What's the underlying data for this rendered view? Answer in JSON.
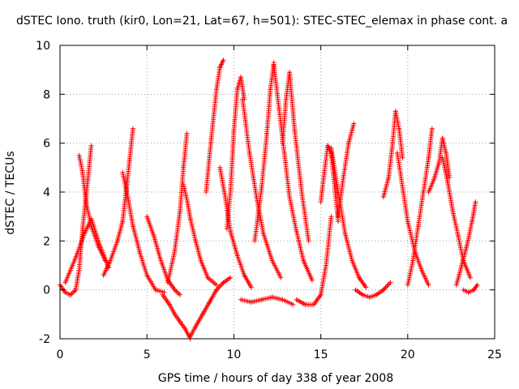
{
  "chart_data": {
    "type": "scatter",
    "title": "dSTEC Iono. truth (kir0, Lon=21, Lat=67, h=501): STEC-STEC_elemax in phase cont. a",
    "xlabel": "GPS time / hours of day 338 of year 2008",
    "ylabel": "dSTEC  / TECUs",
    "xlim": [
      0,
      25
    ],
    "ylim": [
      -2,
      10
    ],
    "xticks": [
      "0",
      "5",
      "10",
      "15",
      "20",
      "25"
    ],
    "yticks": [
      "-2",
      "0",
      "2",
      "4",
      "6",
      "8",
      "10"
    ],
    "grid": true,
    "marker": "+",
    "colors": {
      "series": "#ff0000",
      "grid": "#a0a0a0",
      "axes": "#000000"
    },
    "series": [
      {
        "x": [
          0.0,
          0.3,
          0.6,
          0.9,
          1.1,
          1.3,
          1.6,
          1.8
        ],
        "y": [
          0.2,
          -0.1,
          -0.2,
          0.0,
          0.8,
          2.5,
          4.5,
          5.9
        ]
      },
      {
        "x": [
          1.1,
          1.3,
          1.5,
          1.8,
          2.2,
          2.6
        ],
        "y": [
          5.5,
          4.8,
          3.6,
          2.6,
          1.8,
          1.2
        ]
      },
      {
        "x": [
          0.3,
          0.6,
          1.0,
          1.4,
          1.8,
          2.3,
          2.8
        ],
        "y": [
          0.3,
          0.8,
          1.5,
          2.3,
          2.9,
          1.8,
          0.9
        ]
      },
      {
        "x": [
          2.5,
          2.9,
          3.3,
          3.6,
          3.8,
          4.0,
          4.2
        ],
        "y": [
          0.6,
          1.2,
          2.0,
          2.8,
          4.0,
          5.3,
          6.6
        ]
      },
      {
        "x": [
          3.6,
          3.9,
          4.2,
          4.6,
          5.0,
          5.5,
          6.0
        ],
        "y": [
          4.8,
          3.8,
          2.6,
          1.5,
          0.6,
          0.0,
          -0.1
        ]
      },
      {
        "x": [
          5.0,
          5.4,
          5.8,
          6.2,
          6.6,
          6.9
        ],
        "y": [
          3.0,
          2.2,
          1.2,
          0.4,
          0.0,
          -0.2
        ]
      },
      {
        "x": [
          5.9,
          6.3,
          6.6,
          6.9,
          7.2,
          7.5
        ],
        "y": [
          -0.2,
          -0.6,
          -1.0,
          -1.3,
          -1.6,
          -2.0
        ]
      },
      {
        "x": [
          6.2,
          6.6,
          6.9,
          7.1,
          7.3
        ],
        "y": [
          0.3,
          1.6,
          3.2,
          5.0,
          6.4
        ]
      },
      {
        "x": [
          7.1,
          7.3,
          7.5,
          7.8,
          8.1,
          8.5,
          9.0
        ],
        "y": [
          4.3,
          3.7,
          2.9,
          2.0,
          1.2,
          0.5,
          0.2
        ]
      },
      {
        "x": [
          7.5,
          7.8,
          8.2,
          8.6,
          9.0,
          9.4,
          9.8
        ],
        "y": [
          -1.9,
          -1.5,
          -1.0,
          -0.5,
          0.0,
          0.3,
          0.5
        ]
      },
      {
        "x": [
          8.4,
          8.7,
          9.0,
          9.2,
          9.4
        ],
        "y": [
          4.0,
          6.2,
          8.2,
          9.1,
          9.4
        ]
      },
      {
        "x": [
          9.2,
          9.5,
          9.8,
          10.2,
          10.6,
          11.0
        ],
        "y": [
          5.0,
          3.8,
          2.4,
          1.4,
          0.6,
          0.1
        ]
      },
      {
        "x": [
          9.6,
          9.8,
          10.0,
          10.2,
          10.4,
          10.6
        ],
        "y": [
          2.5,
          4.0,
          6.5,
          8.2,
          8.7,
          7.8
        ]
      },
      {
        "x": [
          10.5,
          10.9,
          11.3,
          11.7,
          12.2,
          12.7
        ],
        "y": [
          7.8,
          5.6,
          3.8,
          2.3,
          1.2,
          0.5
        ]
      },
      {
        "x": [
          10.4,
          11.0,
          11.6,
          12.2,
          12.8,
          13.4
        ],
        "y": [
          -0.4,
          -0.5,
          -0.4,
          -0.3,
          -0.4,
          -0.6
        ]
      },
      {
        "x": [
          11.2,
          11.6,
          11.9,
          12.1,
          12.3
        ],
        "y": [
          2.0,
          4.2,
          6.4,
          8.2,
          9.3
        ]
      },
      {
        "x": [
          12.3,
          12.6,
          12.9,
          13.2,
          13.6,
          14.0,
          14.5
        ],
        "y": [
          9.2,
          7.4,
          5.6,
          3.8,
          2.4,
          1.2,
          0.4
        ]
      },
      {
        "x": [
          12.8,
          13.0,
          13.2,
          13.5,
          13.9,
          14.3
        ],
        "y": [
          6.0,
          7.8,
          8.9,
          6.5,
          4.0,
          2.0
        ]
      },
      {
        "x": [
          13.6,
          14.1,
          14.6,
          15.0,
          15.3,
          15.6
        ],
        "y": [
          -0.4,
          -0.6,
          -0.6,
          -0.2,
          1.0,
          3.0
        ]
      },
      {
        "x": [
          15.0,
          15.2,
          15.4,
          15.6,
          15.8,
          16.0
        ],
        "y": [
          3.6,
          4.8,
          5.9,
          5.6,
          4.2,
          2.8
        ]
      },
      {
        "x": [
          15.6,
          16.0,
          16.4,
          16.8,
          17.2,
          17.6
        ],
        "y": [
          5.8,
          4.0,
          2.3,
          1.2,
          0.5,
          0.1
        ]
      },
      {
        "x": [
          16.0,
          16.3,
          16.6,
          16.9
        ],
        "y": [
          3.0,
          4.6,
          6.0,
          6.8
        ]
      },
      {
        "x": [
          17.0,
          17.4,
          17.8,
          18.2,
          18.6,
          19.0
        ],
        "y": [
          0.0,
          -0.2,
          -0.3,
          -0.2,
          0.0,
          0.3
        ]
      },
      {
        "x": [
          18.6,
          18.9,
          19.1,
          19.3,
          19.5,
          19.7
        ],
        "y": [
          3.8,
          4.6,
          5.8,
          7.3,
          6.6,
          5.4
        ]
      },
      {
        "x": [
          19.4,
          19.7,
          20.0,
          20.4,
          20.8,
          21.2
        ],
        "y": [
          5.6,
          4.2,
          2.8,
          1.6,
          0.8,
          0.2
        ]
      },
      {
        "x": [
          20.0,
          20.3,
          20.6,
          20.9,
          21.2,
          21.4
        ],
        "y": [
          0.2,
          1.2,
          2.6,
          4.0,
          5.4,
          6.6
        ]
      },
      {
        "x": [
          21.2,
          21.5,
          21.8,
          22.0,
          22.2,
          22.4
        ],
        "y": [
          4.0,
          4.5,
          5.2,
          6.2,
          5.6,
          4.6
        ]
      },
      {
        "x": [
          22.0,
          22.3,
          22.6,
          22.9,
          23.2,
          23.6
        ],
        "y": [
          5.4,
          4.4,
          3.2,
          2.2,
          1.2,
          0.5
        ]
      },
      {
        "x": [
          22.8,
          23.1,
          23.4,
          23.7,
          23.9
        ],
        "y": [
          0.2,
          1.0,
          1.8,
          2.8,
          3.6
        ]
      },
      {
        "x": [
          23.2,
          23.5,
          23.8,
          24.0
        ],
        "y": [
          0.0,
          -0.1,
          0.0,
          0.2
        ]
      }
    ]
  }
}
